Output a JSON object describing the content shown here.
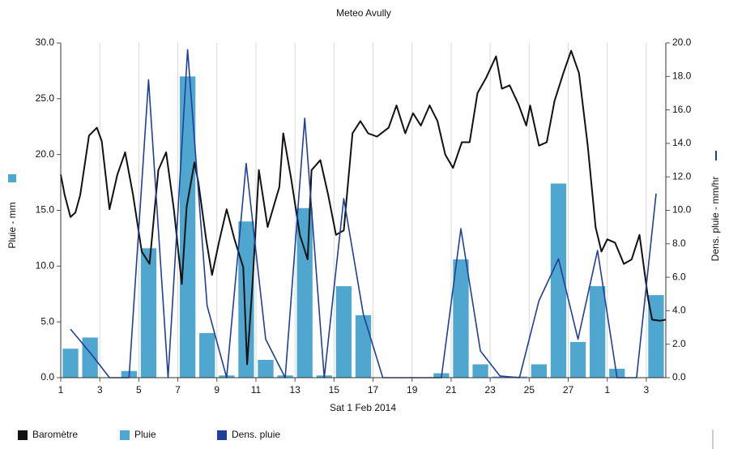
{
  "chart_data": {
    "type": "combo",
    "title": "Meteo  Avully",
    "x_label": "Sat 1 Feb 2014",
    "y_label": "Pluie - mm",
    "y2_label": "Dens. pluie - mm/hr",
    "xlim": [
      1,
      32
    ],
    "xticks": [
      1,
      3,
      5,
      7,
      9,
      11,
      13,
      15,
      17,
      19,
      21,
      23,
      25,
      27,
      {
        "value": 29,
        "label": "1"
      },
      {
        "value": 31,
        "label": "3"
      }
    ],
    "ylim": [
      0,
      30
    ],
    "yticks": [
      {
        "value": 0,
        "label": "0.0"
      },
      {
        "value": 5,
        "label": "5.0"
      },
      {
        "value": 10,
        "label": "10.0"
      },
      {
        "value": 15,
        "label": "15.0"
      },
      {
        "value": 20,
        "label": "20.0"
      },
      {
        "value": 25,
        "label": "25.0"
      },
      {
        "value": 30,
        "label": "30.0"
      }
    ],
    "y2lim": [
      0,
      20
    ],
    "y2ticks": [
      {
        "value": 0,
        "label": "0.0"
      },
      {
        "value": 2,
        "label": "2.0"
      },
      {
        "value": 4,
        "label": "4.0"
      },
      {
        "value": 6,
        "label": "6.0"
      },
      {
        "value": 8,
        "label": "8.0"
      },
      {
        "value": 10,
        "label": "10.0"
      },
      {
        "value": 12,
        "label": "12.0"
      },
      {
        "value": 14,
        "label": "14.0"
      },
      {
        "value": 16,
        "label": "16.0"
      },
      {
        "value": 18,
        "label": "18.0"
      },
      {
        "value": 20,
        "label": "20.0"
      }
    ],
    "grid": true,
    "series": [
      {
        "name": "Baromètre",
        "type": "line",
        "color": "#111111",
        "x": [
          1.0,
          1.2,
          1.5,
          1.75,
          2.0,
          2.45,
          2.85,
          3.1,
          3.5,
          3.9,
          4.3,
          4.7,
          5.15,
          5.55,
          6.0,
          6.4,
          6.8,
          7.2,
          7.45,
          7.85,
          8.05,
          8.45,
          8.75,
          9.1,
          9.5,
          9.9,
          10.35,
          10.55,
          10.85,
          11.15,
          11.6,
          12.2,
          12.4,
          12.8,
          13.25,
          13.65,
          13.85,
          14.3,
          14.7,
          15.1,
          15.5,
          15.95,
          16.35,
          16.75,
          17.2,
          17.8,
          18.2,
          18.65,
          19.05,
          19.45,
          19.9,
          20.3,
          20.7,
          21.1,
          21.55,
          21.95,
          22.35,
          22.8,
          23.3,
          23.6,
          24.0,
          24.45,
          24.85,
          25.05,
          25.5,
          25.9,
          26.3,
          26.75,
          27.15,
          27.55,
          28.0,
          28.4,
          28.7,
          29.0,
          29.4,
          29.85,
          30.25,
          30.65,
          31.1,
          31.3,
          31.7,
          32.0
        ],
        "values": [
          18.2,
          16.4,
          14.4,
          14.8,
          16.4,
          21.7,
          22.4,
          21.2,
          15.1,
          18.2,
          20.2,
          16.4,
          11.3,
          10.2,
          18.6,
          20.2,
          15.0,
          8.4,
          15.3,
          19.3,
          17.5,
          12.4,
          9.2,
          12.1,
          15.1,
          12.4,
          9.9,
          1.2,
          9.2,
          18.6,
          13.5,
          17.1,
          21.9,
          17.9,
          12.8,
          10.6,
          18.6,
          19.5,
          16.4,
          12.8,
          13.2,
          21.9,
          23.0,
          21.9,
          21.6,
          22.4,
          24.4,
          21.9,
          23.7,
          22.6,
          24.4,
          23.0,
          20.0,
          18.8,
          21.1,
          21.1,
          25.5,
          26.9,
          28.8,
          25.9,
          26.2,
          24.5,
          22.6,
          24.4,
          20.8,
          21.1,
          24.8,
          27.3,
          29.3,
          27.3,
          20.8,
          13.5,
          11.3,
          12.4,
          12.1,
          10.2,
          10.6,
          12.8,
          7.0,
          5.2,
          5.1,
          5.2
        ]
      },
      {
        "name": "Pluie",
        "type": "bar",
        "color": "#4fa7cf",
        "x": [
          1.5,
          2.5,
          3.5,
          4.5,
          5.5,
          6.5,
          7.5,
          8.5,
          9.5,
          10.5,
          11.5,
          12.5,
          13.5,
          14.5,
          15.5,
          16.5,
          17.5,
          18.5,
          19.5,
          20.5,
          21.5,
          22.5,
          23.5,
          24.5,
          25.5,
          26.5,
          27.5,
          28.5,
          29.5,
          30.5,
          31.5
        ],
        "values": [
          2.6,
          3.6,
          0,
          0.6,
          11.6,
          0,
          27.0,
          4.0,
          0.2,
          14.0,
          1.6,
          0.2,
          15.2,
          0.2,
          8.2,
          5.6,
          0,
          0,
          0,
          0.4,
          10.6,
          1.2,
          0.1,
          0.1,
          1.2,
          17.4,
          3.2,
          8.2,
          0.8,
          0,
          7.4
        ]
      },
      {
        "name": "Dens. pluie",
        "type": "line",
        "axis": "y2",
        "color": "#1f3f9a",
        "x": [
          1.5,
          2.5,
          3.5,
          4.5,
          5.5,
          6.5,
          7.5,
          8.5,
          9.5,
          10.5,
          11.5,
          12.5,
          13.5,
          14.5,
          15.5,
          16.5,
          17.5,
          18.5,
          19.5,
          20.5,
          21.5,
          22.5,
          23.5,
          24.5,
          25.5,
          26.5,
          27.5,
          28.5,
          29.5,
          30.5,
          31.5
        ],
        "values": [
          2.9,
          1.5,
          0,
          0,
          17.8,
          0,
          19.6,
          4.3,
          0,
          12.8,
          2.3,
          0,
          15.5,
          0,
          10.7,
          3.8,
          0,
          0,
          0,
          0,
          8.9,
          1.6,
          0.1,
          0,
          4.6,
          7.1,
          2.3,
          7.6,
          0,
          0,
          11.0
        ]
      }
    ]
  }
}
